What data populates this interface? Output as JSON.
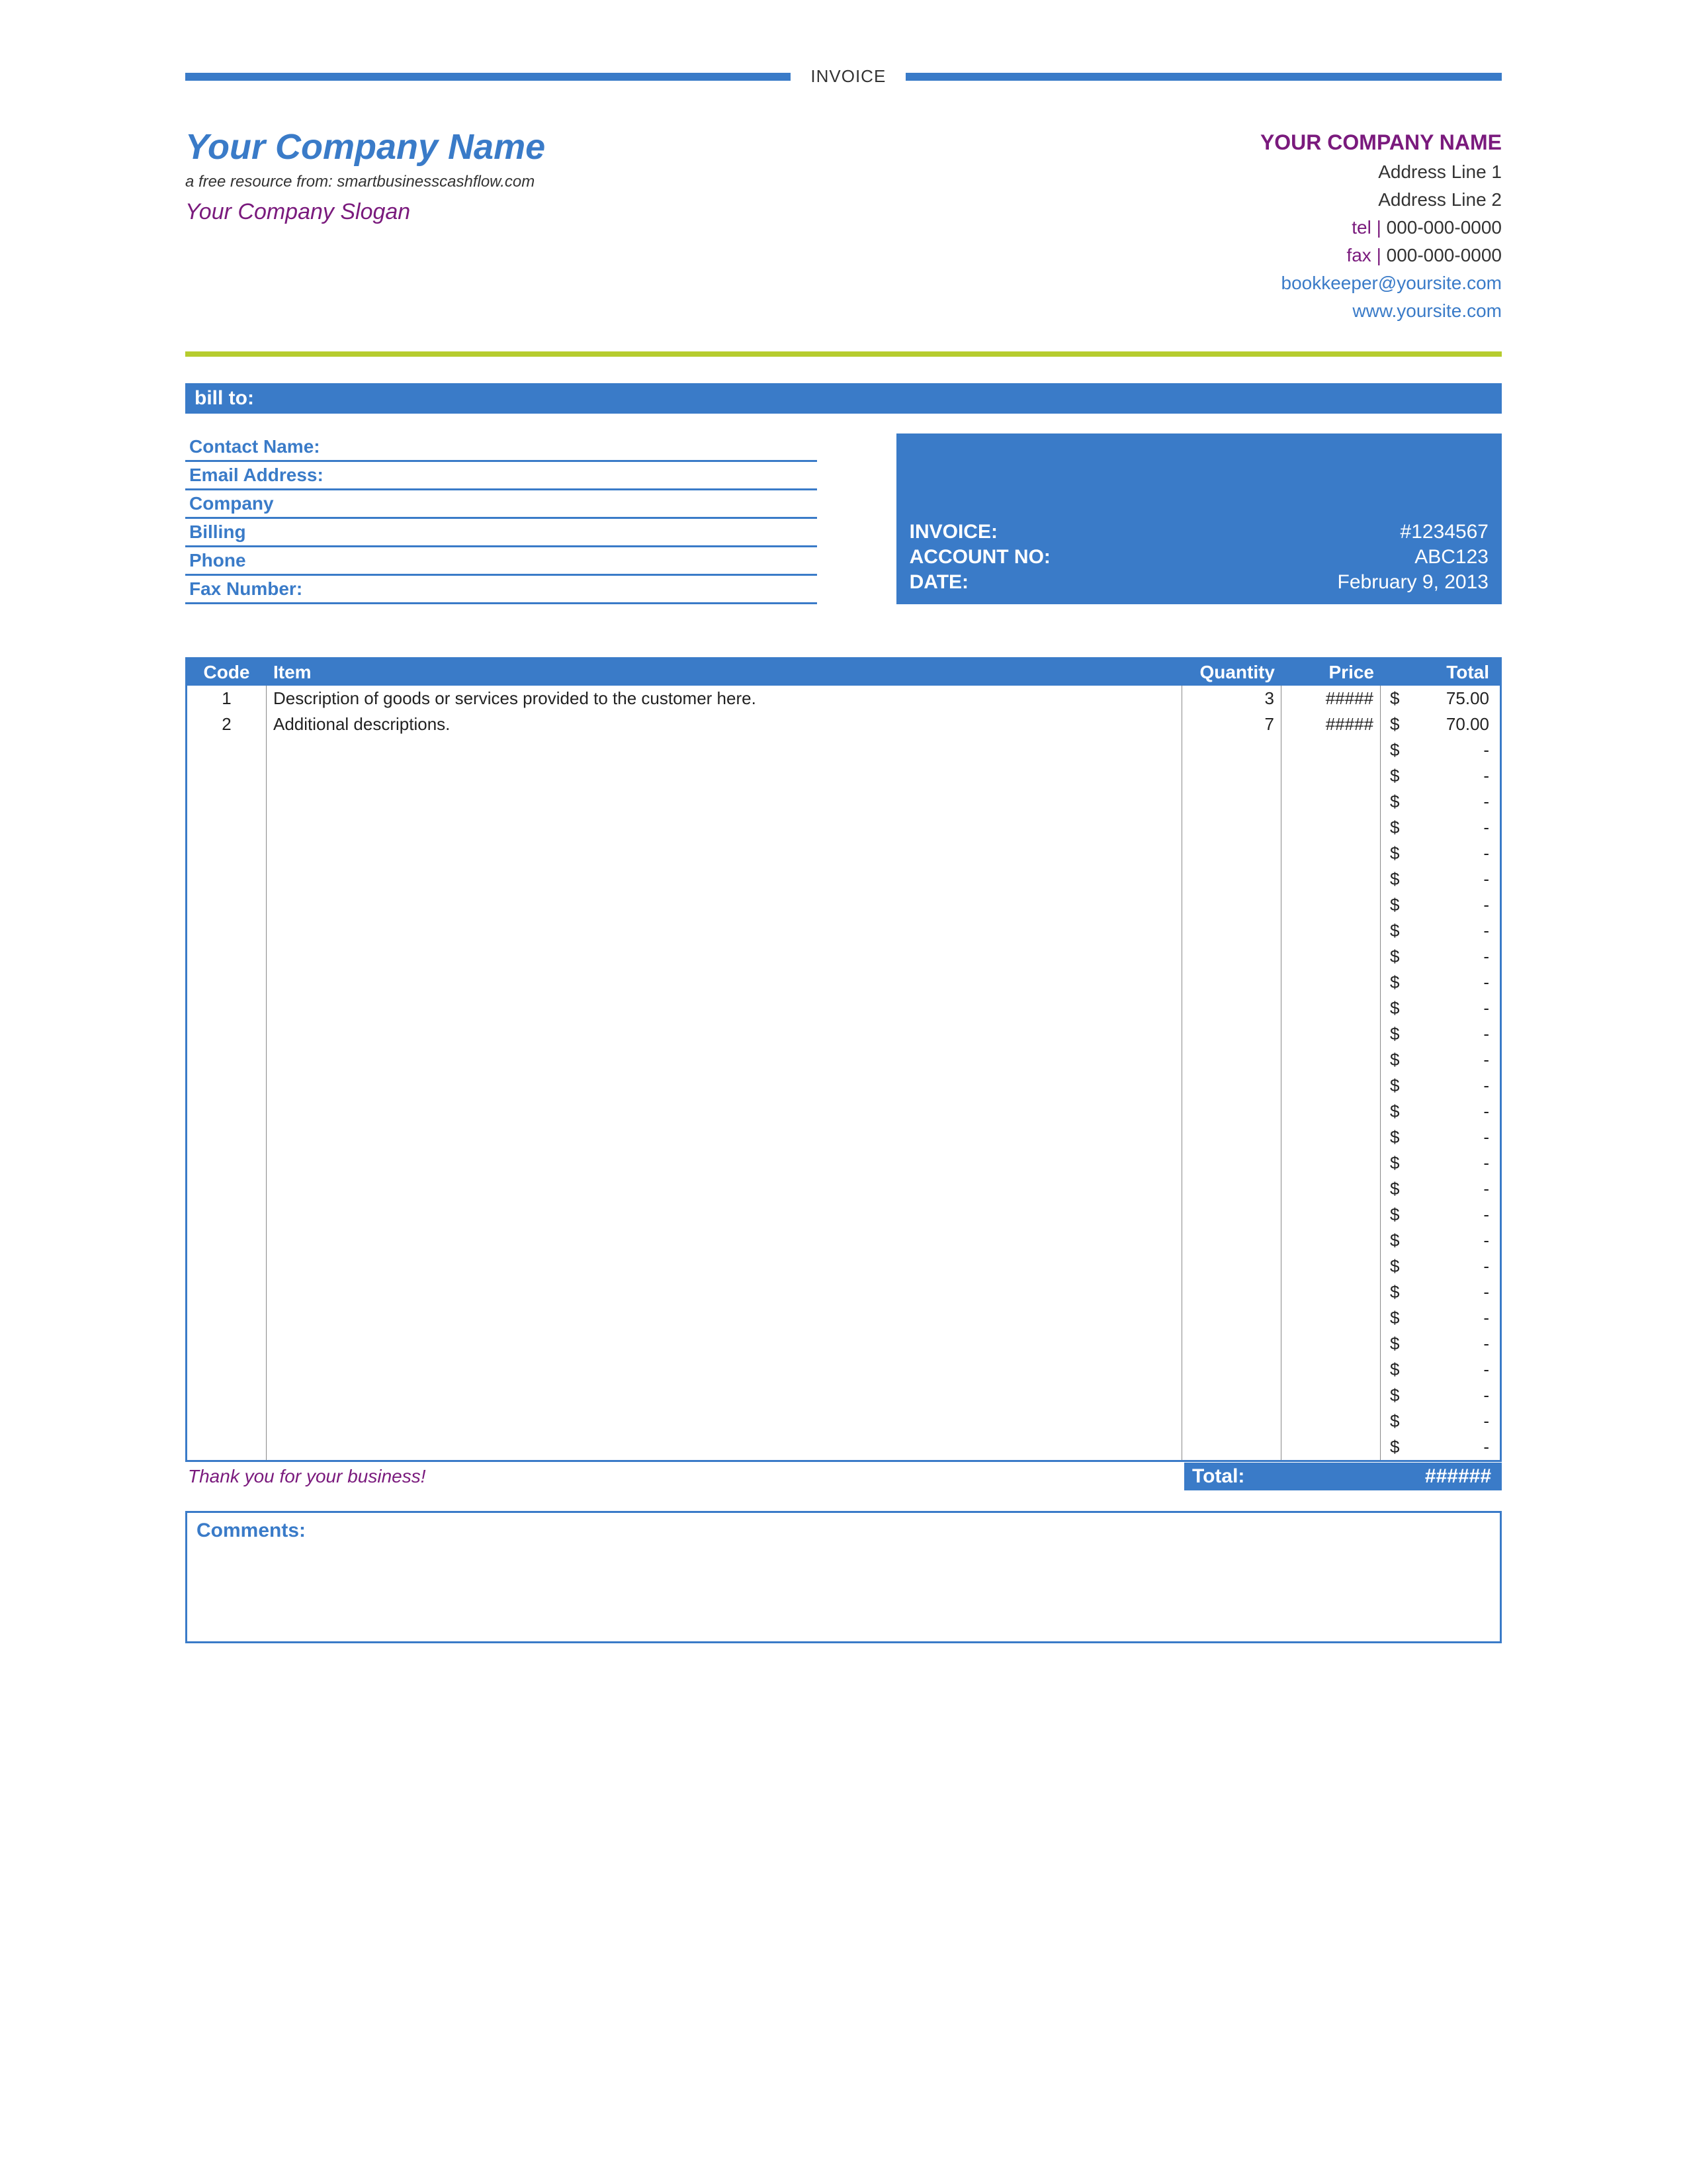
{
  "colors": {
    "accent": "#3a7bc8",
    "purple": "#7a1a7d",
    "lime": "#b6cc2e",
    "text": "#222222",
    "background": "#ffffff"
  },
  "doc_title": "INVOICE",
  "header": {
    "company_name": "Your Company Name",
    "resource_line": "a free resource from: smartbusinesscashflow.com",
    "slogan": "Your Company Slogan",
    "right": {
      "company": "YOUR COMPANY NAME",
      "addr1": "Address Line 1",
      "addr2": "Address Line 2",
      "tel_label": "tel |",
      "tel": "000-000-0000",
      "fax_label": "fax |",
      "fax": "000-000-0000",
      "email": "bookkeeper@yoursite.com",
      "site": "www.yoursite.com"
    }
  },
  "billto_label": "bill to:",
  "bill_fields": [
    "Contact Name:",
    "Email Address:",
    "Company",
    "Billing",
    "Phone",
    "Fax Number:"
  ],
  "invoice_meta": {
    "invoice_label": "INVOICE:",
    "invoice_value": "#1234567",
    "account_label": "ACCOUNT NO:",
    "account_value": "ABC123",
    "date_label": "DATE:",
    "date_value": "February 9, 2013"
  },
  "table": {
    "columns": [
      "Code",
      "Item",
      "Quantity",
      "Price",
      "Total"
    ],
    "currency": "$",
    "empty_marker": "-",
    "rows": [
      {
        "code": "1",
        "item": "Description of goods or services provided to the customer here.",
        "qty": "3",
        "price": "#####",
        "total": "75.00"
      },
      {
        "code": "2",
        "item": "Additional descriptions.",
        "qty": "7",
        "price": "#####",
        "total": "70.00"
      }
    ],
    "blank_row_count": 28,
    "footer": {
      "thank_you": "Thank you for your business!",
      "total_label": "Total:",
      "total_value": "######"
    }
  },
  "comments_label": "Comments:"
}
